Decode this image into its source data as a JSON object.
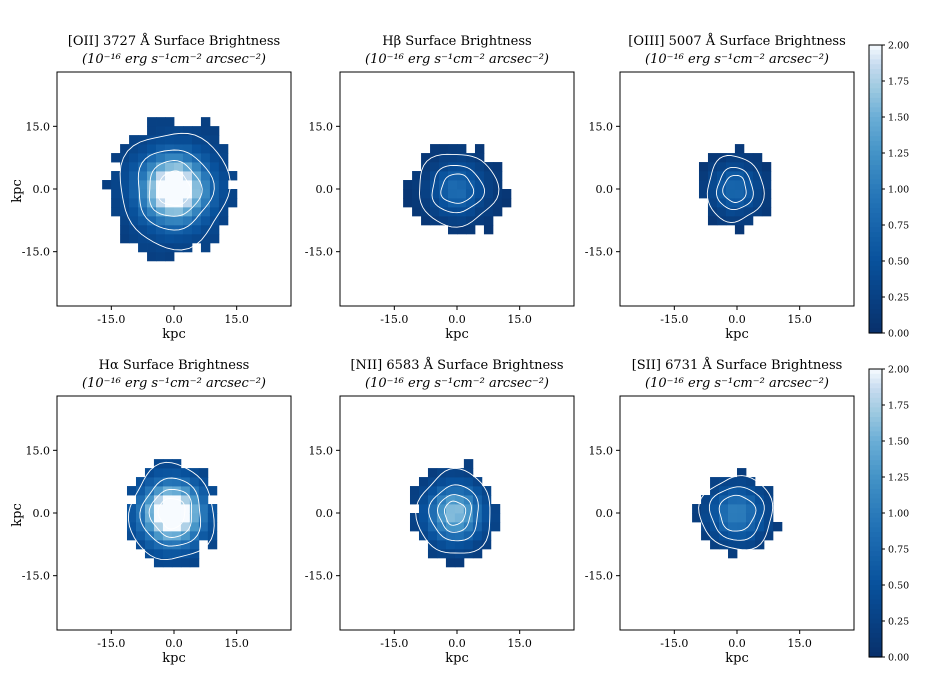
{
  "chart_data": [
    {
      "type": "heatmap",
      "title": "[OII] 3727 Å Surface Brightness",
      "subtitle": "(10⁻¹⁶ erg s⁻¹cm⁻² arcsec⁻²)",
      "xlabel": "kpc",
      "ylabel": "kpc",
      "xticks": [
        "-15.0",
        "0.0",
        "15.0"
      ],
      "yticks": [
        "15.0",
        "0.0",
        "-15.0"
      ],
      "xlim": [
        -28,
        28
      ],
      "ylim": [
        -28,
        28
      ],
      "show_ylabel": true,
      "show_xlabel": true,
      "source": {
        "cx": 0,
        "cy": 0,
        "rx": 15.5,
        "ry": 16.5,
        "peak": 2.3,
        "sigma": 5.5,
        "floor": 0.22
      },
      "contour_levels": [
        0.35,
        0.8,
        1.4,
        2.0
      ]
    },
    {
      "type": "heatmap",
      "title": "Hβ Surface Brightness",
      "subtitle": "(10⁻¹⁶ erg s⁻¹cm⁻² arcsec⁻²)",
      "xlabel": "kpc",
      "ylabel": "",
      "xticks": [
        "-15.0",
        "0.0",
        "15.0"
      ],
      "yticks": [
        "15.0",
        "0.0",
        "-15.0"
      ],
      "xlim": [
        -28,
        28
      ],
      "ylim": [
        -28,
        28
      ],
      "show_ylabel": false,
      "show_xlabel": true,
      "source": {
        "cx": 0,
        "cy": 0,
        "rx": 12,
        "ry": 11,
        "peak": 0.75,
        "sigma": 4.5,
        "floor": 0.08
      },
      "contour_levels": [
        0.18,
        0.4,
        0.62
      ]
    },
    {
      "type": "heatmap",
      "title": "[OIII] 5007 Å Surface Brightness",
      "subtitle": "(10⁻¹⁶ erg s⁻¹cm⁻² arcsec⁻²)",
      "xlabel": "kpc",
      "ylabel": "",
      "xticks": [
        "-15.0",
        "0.0",
        "15.0"
      ],
      "yticks": [
        "15.0",
        "0.0",
        "-15.0"
      ],
      "xlim": [
        -28,
        28
      ],
      "ylim": [
        -28,
        28
      ],
      "show_ylabel": false,
      "show_xlabel": true,
      "source": {
        "cx": -0.5,
        "cy": 0,
        "rx": 8.5,
        "ry": 10,
        "peak": 0.7,
        "sigma": 4,
        "floor": 0.08
      },
      "contour_levels": [
        0.2,
        0.42,
        0.6
      ]
    },
    {
      "type": "heatmap",
      "title": "Hα Surface Brightness",
      "subtitle": "(10⁻¹⁶ erg s⁻¹cm⁻² arcsec⁻²)",
      "xlabel": "kpc",
      "ylabel": "kpc",
      "xticks": [
        "-15.0",
        "0.0",
        "15.0"
      ],
      "yticks": [
        "15.0",
        "0.0",
        "-15.0"
      ],
      "xlim": [
        -28,
        28
      ],
      "ylim": [
        -28,
        28
      ],
      "show_ylabel": true,
      "show_xlabel": true,
      "source": {
        "cx": -0.5,
        "cy": 0,
        "rx": 11,
        "ry": 12.5,
        "peak": 2.4,
        "sigma": 4.8,
        "floor": 0.25
      },
      "contour_levels": [
        0.4,
        0.9,
        1.5,
        2.1
      ]
    },
    {
      "type": "heatmap",
      "title": "[NII] 6583 Å Surface Brightness",
      "subtitle": "(10⁻¹⁶ erg s⁻¹cm⁻² arcsec⁻²)",
      "xlabel": "kpc",
      "ylabel": "",
      "xticks": [
        "-15.0",
        "0.0",
        "15.0"
      ],
      "yticks": [
        "15.0",
        "0.0",
        "-15.0"
      ],
      "xlim": [
        -28,
        28
      ],
      "ylim": [
        -28,
        28
      ],
      "show_ylabel": false,
      "show_xlabel": true,
      "source": {
        "cx": -0.5,
        "cy": 0,
        "rx": 10.5,
        "ry": 12,
        "peak": 1.5,
        "sigma": 4.5,
        "floor": 0.15
      },
      "contour_levels": [
        0.3,
        0.7,
        1.1,
        1.4
      ]
    },
    {
      "type": "heatmap",
      "title": "[SII] 6731 Å Surface Brightness",
      "subtitle": "(10⁻¹⁶ erg s⁻¹cm⁻² arcsec⁻²)",
      "xlabel": "kpc",
      "ylabel": "",
      "xticks": [
        "-15.0",
        "0.0",
        "15.0"
      ],
      "yticks": [
        "15.0",
        "0.0",
        "-15.0"
      ],
      "xlim": [
        -28,
        28
      ],
      "ylim": [
        -28,
        28
      ],
      "show_ylabel": false,
      "show_xlabel": true,
      "source": {
        "cx": 0,
        "cy": 0,
        "rx": 9.5,
        "ry": 9.5,
        "peak": 0.95,
        "sigma": 4.5,
        "floor": 0.12
      },
      "contour_levels": [
        0.25,
        0.5,
        0.75
      ]
    }
  ],
  "colorbars": [
    {
      "ticks": [
        "2.00",
        "1.75",
        "1.50",
        "1.25",
        "1.00",
        "0.75",
        "0.50",
        "0.25",
        "0.00"
      ],
      "vmin": 0,
      "vmax": 2,
      "colormap": "Blues_r"
    },
    {
      "ticks": [
        "2.00",
        "1.75",
        "1.50",
        "1.25",
        "1.00",
        "0.75",
        "0.50",
        "0.25",
        "0.00"
      ],
      "vmin": 0,
      "vmax": 2,
      "colormap": "Blues_r"
    }
  ],
  "colors": {
    "low": "#08306b",
    "mid": "#2171b5",
    "light": "#9ecae1",
    "high": "#f7fbff",
    "contour": "#ffffff"
  }
}
